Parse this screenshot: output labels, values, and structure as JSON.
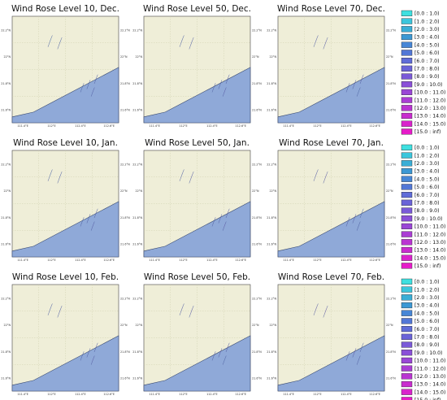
{
  "chart_data": {
    "type": "windrose-map-grid",
    "rows": [
      "Dec.",
      "Jan.",
      "Feb."
    ],
    "levels": [
      10,
      50,
      70
    ],
    "titles": [
      [
        "Wind Rose Level 10, Dec.",
        "Wind Rose Level 50, Dec.",
        "Wind Rose Level 70, Dec."
      ],
      [
        "Wind Rose Level 10, Jan.",
        "Wind Rose Level 50, Jan.",
        "Wind Rose Level 70, Jan."
      ],
      [
        "Wind Rose Level 10, Feb.",
        "Wind Rose Level 50, Feb.",
        "Wind Rose Level 70, Feb."
      ]
    ],
    "x_ticks": [
      "111.4°E",
      "112°E",
      "112.4°E",
      "112.6°E"
    ],
    "y_ticks": [
      "22.2°N",
      "22°N",
      "21.8°N",
      "21.6°N"
    ],
    "y_ticks_right": [
      "22.2°N",
      "22°N",
      "21.8°N",
      "21.6°N"
    ],
    "land_color": "#efeed8",
    "sea_color": "#8fa9d8",
    "grid": true,
    "legend": {
      "placement": "right",
      "bins": [
        "[0.0 : 1.0)",
        "[1.0 : 2.0)",
        "[2.0 : 3.0)",
        "[3.0 : 4.0)",
        "[4.0 : 5.0)",
        "[5.0 : 6.0)",
        "[6.0 : 7.0)",
        "[7.0 : 8.0)",
        "[8.0 : 9.0)",
        "[9.0 : 10.0)",
        "[10.0 : 11.0)",
        "[11.0 : 12.0)",
        "[12.0 : 13.0)",
        "[13.0 : 14.0)",
        "[14.0 : 15.0)",
        "[15.0 : inf)"
      ],
      "colors": [
        "#3fe0e0",
        "#3cc6dc",
        "#3aaed6",
        "#3c98d4",
        "#4786d6",
        "#5277d6",
        "#5f6cd8",
        "#6a63d8",
        "#7a5ad8",
        "#8a50d8",
        "#9a47d6",
        "#aa3ed4",
        "#ba35d2",
        "#c92ccf",
        "#d923cc",
        "#e61bc9"
      ]
    }
  }
}
